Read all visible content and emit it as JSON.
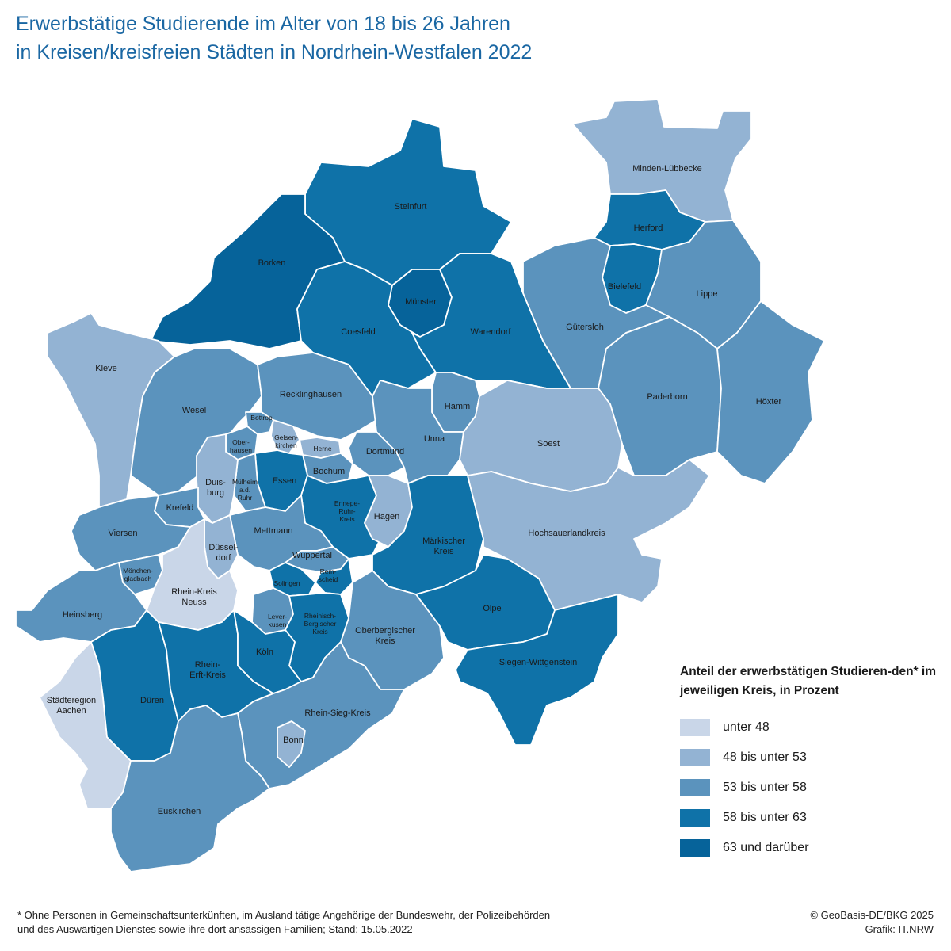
{
  "title": {
    "line1": "Erwerbstätige Studierende im Alter von 18 bis 26 Jahren",
    "line2": "in Kreisen/kreisfreien Städten in Nordrhein-Westfalen 2022"
  },
  "legend": {
    "title": "Anteil der erwerbstätigen Studieren-den* im jeweiligen Kreis, in Prozent",
    "classes": [
      {
        "label": "unter 48",
        "color": "#c9d6e8"
      },
      {
        "label": "48 bis unter 53",
        "color": "#93b3d3"
      },
      {
        "label": "53 bis unter 58",
        "color": "#5b93bd"
      },
      {
        "label": "58 bis unter 63",
        "color": "#0f72a8"
      },
      {
        "label": "63 und darüber",
        "color": "#06639a"
      }
    ]
  },
  "map": {
    "regions": {
      "minden": {
        "name": "Minden-Lübbecke",
        "class": 1
      },
      "herford": {
        "name": "Herford",
        "class": 3
      },
      "bielefeld": {
        "name": "Bielefeld",
        "class": 3
      },
      "lippe": {
        "name": "Lippe",
        "class": 2
      },
      "guetersloh": {
        "name": "Gütersloh",
        "class": 2
      },
      "paderborn": {
        "name": "Paderborn",
        "class": 2
      },
      "hoexter": {
        "name": "Höxter",
        "class": 2
      },
      "steinfurt": {
        "name": "Steinfurt",
        "class": 3
      },
      "borken": {
        "name": "Borken",
        "class": 4
      },
      "coesfeld": {
        "name": "Coesfeld",
        "class": 3
      },
      "muenster": {
        "name": "Münster",
        "class": 4
      },
      "warendorf": {
        "name": "Warendorf",
        "class": 3
      },
      "kleve": {
        "name": "Kleve",
        "class": 1
      },
      "wesel": {
        "name": "Wesel",
        "class": 2
      },
      "recklinghausen": {
        "name": "Recklinghausen",
        "class": 2
      },
      "hamm": {
        "name": "Hamm",
        "class": 2
      },
      "unna": {
        "name": "Unna",
        "class": 2
      },
      "soest": {
        "name": "Soest",
        "class": 1
      },
      "dortmund": {
        "name": "Dortmund",
        "class": 2
      },
      "bottrop": {
        "name": "Bottrop",
        "class": 2
      },
      "gelsenkirchen": {
        "name": "Gelsen-kirchen",
        "class": 1
      },
      "herne": {
        "name": "Herne",
        "class": 1
      },
      "oberhausen": {
        "name": "Ober-hausen",
        "class": 2
      },
      "bochum": {
        "name": "Bochum",
        "class": 2
      },
      "essen": {
        "name": "Essen",
        "class": 3
      },
      "muelheim": {
        "name": "Mülheim a.d. Ruhr",
        "class": 2
      },
      "duisburg": {
        "name": "Duis-burg",
        "class": 1
      },
      "ennepe": {
        "name": "Ennepe-Ruhr-Kreis",
        "class": 3
      },
      "hagen": {
        "name": "Hagen",
        "class": 1
      },
      "maerkisch": {
        "name": "Märkischer Kreis",
        "class": 3
      },
      "hochsauerland": {
        "name": "Hochsauerlandkreis",
        "class": 1
      },
      "krefeld": {
        "name": "Krefeld",
        "class": 2
      },
      "viersen": {
        "name": "Viersen",
        "class": 2
      },
      "mettmann": {
        "name": "Mettmann",
        "class": 2
      },
      "duesseldorf": {
        "name": "Düssel-dorf",
        "class": 1
      },
      "wuppertal": {
        "name": "Wuppertal",
        "class": 2
      },
      "remscheid": {
        "name": "Rem-scheid",
        "class": 3
      },
      "solingen": {
        "name": "Solingen",
        "class": 3
      },
      "moenchengladbach": {
        "name": "Mönchen-gladbach",
        "class": 2
      },
      "neuss": {
        "name": "Rhein-Kreis Neuss",
        "class": 0
      },
      "heinsberg": {
        "name": "Heinsberg",
        "class": 2
      },
      "leverkusen": {
        "name": "Lever-kusen",
        "class": 2
      },
      "rheinberg": {
        "name": "Rheinisch-Bergischer Kreis",
        "class": 3
      },
      "oberberg": {
        "name": "Oberbergischer Kreis",
        "class": 2
      },
      "olpe": {
        "name": "Olpe",
        "class": 3
      },
      "siegen": {
        "name": "Siegen-Wittgenstein",
        "class": 3
      },
      "aachen": {
        "name": "Städteregion Aachen",
        "class": 0
      },
      "dueren": {
        "name": "Düren",
        "class": 3
      },
      "erft": {
        "name": "Rhein-Erft-Kreis",
        "class": 3
      },
      "koeln": {
        "name": "Köln",
        "class": 3
      },
      "rheinsieg": {
        "name": "Rhein-Sieg-Kreis",
        "class": 2
      },
      "bonn": {
        "name": "Bonn",
        "class": 1
      },
      "euskirchen": {
        "name": "Euskirchen",
        "class": 2
      }
    }
  },
  "footnote": {
    "line1": "* Ohne Personen in Gemeinschaftsunterkünften, im Ausland tätige Angehörige der Bundeswehr, der Polizeibehörden",
    "line2": "und des Auswärtigen Dienstes sowie ihre dort ansässigen Familien; Stand: 15.05.2022"
  },
  "credits": {
    "line1": "© GeoBasis-DE/BKG 2025",
    "line2": "Grafik: IT.NRW"
  }
}
